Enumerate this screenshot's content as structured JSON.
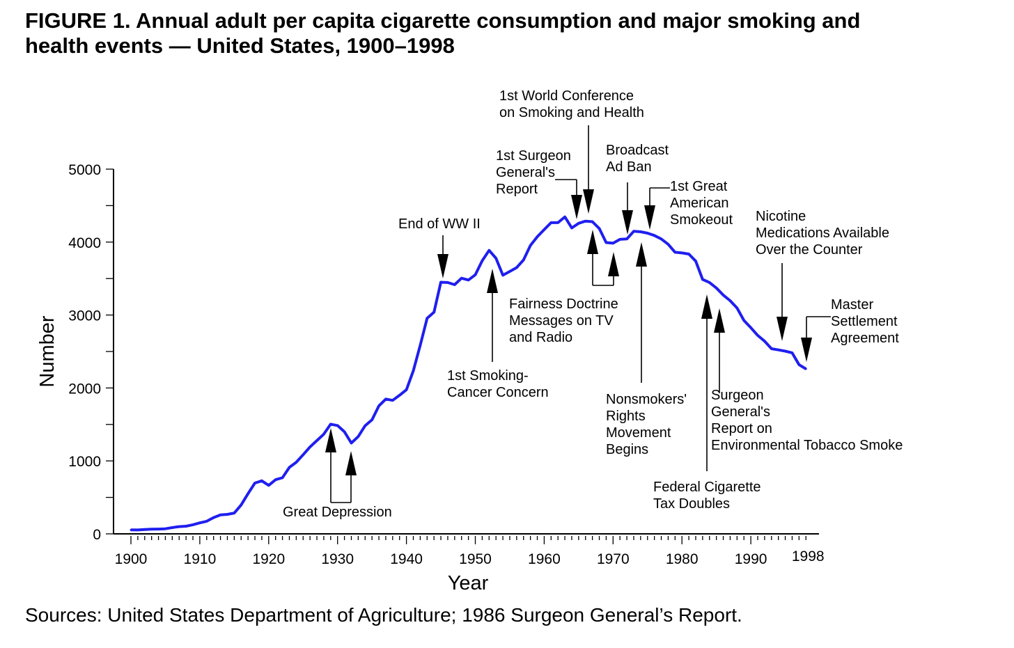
{
  "title_line1": "FIGURE 1. Annual adult per capita cigarette consumption and major smoking and",
  "title_line2": "health events — United States, 1900–1998",
  "source": "Sources: United States Department of Agriculture; 1986 Surgeon General’s Report.",
  "chart_data": {
    "type": "line",
    "title": "Annual adult per capita cigarette consumption and major smoking and health events — United States, 1900–1998",
    "xlabel": "Year",
    "ylabel": "Number",
    "xlim": [
      1900,
      1998
    ],
    "ylim": [
      0,
      5000
    ],
    "x_ticks": [
      "1900",
      "1910",
      "1920",
      "1930",
      "1940",
      "1950",
      "1960",
      "1970",
      "1980",
      "1990",
      "1998"
    ],
    "y_ticks": [
      "0",
      "1000",
      "2000",
      "3000",
      "4000",
      "5000"
    ],
    "line_color": "#1f1fef",
    "grid": false,
    "x": [
      1900,
      1901,
      1902,
      1903,
      1904,
      1905,
      1906,
      1907,
      1908,
      1909,
      1910,
      1911,
      1912,
      1913,
      1914,
      1915,
      1916,
      1917,
      1918,
      1919,
      1920,
      1921,
      1922,
      1923,
      1924,
      1925,
      1926,
      1927,
      1928,
      1929,
      1930,
      1931,
      1932,
      1933,
      1934,
      1935,
      1936,
      1937,
      1938,
      1939,
      1940,
      1941,
      1942,
      1943,
      1944,
      1945,
      1946,
      1947,
      1948,
      1949,
      1950,
      1951,
      1952,
      1953,
      1954,
      1955,
      1956,
      1957,
      1958,
      1959,
      1960,
      1961,
      1962,
      1963,
      1964,
      1965,
      1966,
      1967,
      1968,
      1969,
      1970,
      1971,
      1972,
      1973,
      1974,
      1975,
      1976,
      1977,
      1978,
      1979,
      1980,
      1981,
      1982,
      1983,
      1984,
      1985,
      1986,
      1987,
      1988,
      1989,
      1990,
      1991,
      1992,
      1993,
      1994,
      1995,
      1996,
      1997,
      1998
    ],
    "values": [
      54,
      53,
      60,
      64,
      66,
      70,
      86,
      99,
      105,
      125,
      151,
      173,
      223,
      260,
      267,
      285,
      395,
      551,
      697,
      727,
      665,
      742,
      770,
      911,
      982,
      1085,
      1191,
      1279,
      1366,
      1504,
      1485,
      1399,
      1245,
      1334,
      1483,
      1564,
      1754,
      1847,
      1830,
      1900,
      1976,
      2236,
      2585,
      2956,
      3039,
      3449,
      3446,
      3416,
      3505,
      3480,
      3552,
      3744,
      3886,
      3778,
      3546,
      3597,
      3650,
      3755,
      3953,
      4073,
      4171,
      4266,
      4266,
      4345,
      4194,
      4258,
      4287,
      4280,
      4186,
      3993,
      3985,
      4037,
      4043,
      4148,
      4141,
      4122,
      4091,
      4043,
      3970,
      3861,
      3851,
      3836,
      3739,
      3488,
      3446,
      3370,
      3274,
      3197,
      3096,
      2926,
      2826,
      2720,
      2641,
      2538,
      2522,
      2505,
      2482,
      2320,
      2261
    ],
    "annotations": [
      {
        "lines": [
          "Great Depression"
        ]
      },
      {
        "lines": [
          "End of WW II"
        ]
      },
      {
        "lines": [
          "1st Smoking-",
          "Cancer Concern"
        ]
      },
      {
        "lines": [
          "Fairness Doctrine",
          "Messages on TV",
          "and Radio"
        ]
      },
      {
        "lines": [
          "1st Surgeon",
          "General's",
          "Report"
        ]
      },
      {
        "lines": [
          "1st World Conference",
          "on Smoking and Health"
        ]
      },
      {
        "lines": [
          "Broadcast",
          "Ad Ban"
        ]
      },
      {
        "lines": [
          "1st Great",
          "American",
          "Smokeout"
        ]
      },
      {
        "lines": [
          "Nonsmokers'",
          "Rights",
          "Movement",
          "Begins"
        ]
      },
      {
        "lines": [
          "Surgeon",
          "General's",
          "Report on",
          "Environmental Tobacco Smoke"
        ]
      },
      {
        "lines": [
          "Federal Cigarette",
          "Tax Doubles"
        ]
      },
      {
        "lines": [
          "Nicotine",
          "Medications Available",
          "Over the Counter"
        ]
      },
      {
        "lines": [
          "Master",
          "Settlement",
          "Agreement"
        ]
      }
    ]
  }
}
